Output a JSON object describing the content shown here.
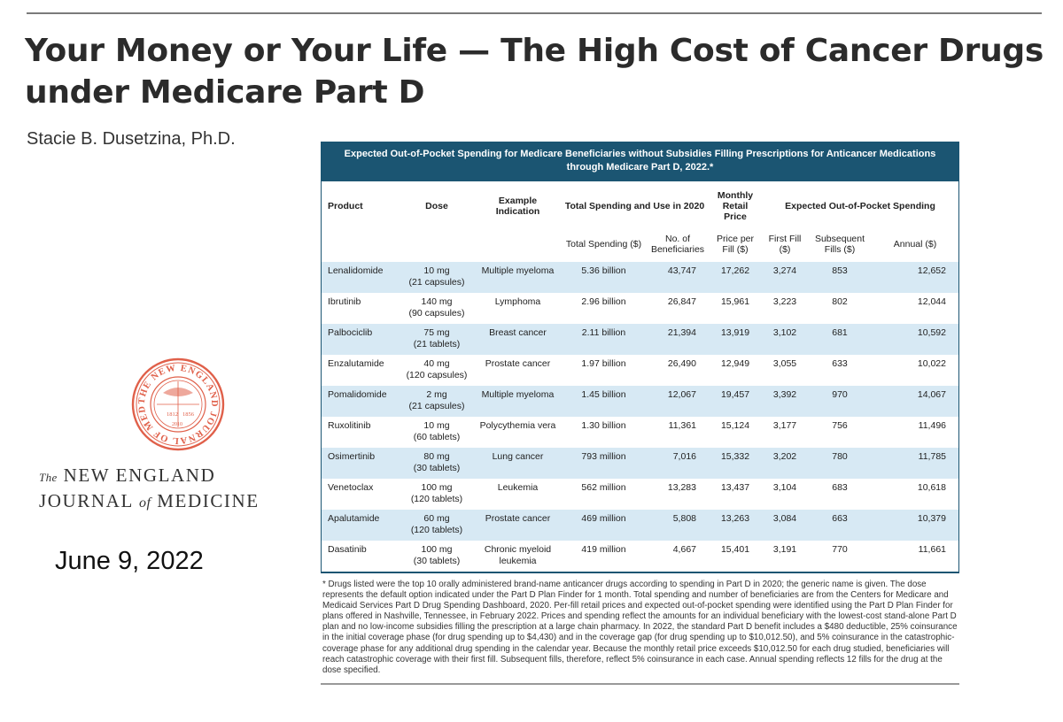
{
  "article": {
    "title": "Your Money or Your Life — The High Cost of Cancer Drugs under Medicare Part D",
    "author": "Stacie B. Dusetzina, Ph.D.",
    "date": "June 9, 2022"
  },
  "journal": {
    "the": "The",
    "line1": "NEW ENGLAND",
    "line2a": "JOURNAL",
    "of": "of",
    "line2b": "MEDICINE",
    "seal_text": "THE NEW ENGLAND JOURNAL OF MEDICINE",
    "seal_years": [
      "1812",
      "1856",
      "2010"
    ]
  },
  "table": {
    "title": "Expected Out-of-Pocket Spending for Medicare Beneficiaries without Subsidies Filling Prescriptions for Anticancer Medications through Medicare Part D, 2022.*",
    "headers": {
      "product": "Product",
      "dose": "Dose",
      "indication": "Example Indication",
      "total_group": "Total Spending and Use in 2020",
      "monthly_group": "Monthly Retail Price",
      "oop_group": "Expected Out-of-Pocket Spending",
      "total_spending": "Total Spending ($)",
      "beneficiaries": "No. of Beneficiaries",
      "price_per_fill": "Price per Fill ($)",
      "first_fill": "First Fill ($)",
      "subsequent": "Subsequent Fills ($)",
      "annual": "Annual ($)"
    },
    "rows": [
      {
        "product": "Lenalidomide",
        "dose": "10 mg",
        "dose_sub": "(21 capsules)",
        "indication": "Multiple myeloma",
        "total": "5.36 billion",
        "benef": "43,747",
        "price": "17,262",
        "first": "3,274",
        "subsequent": "853",
        "annual": "12,652"
      },
      {
        "product": "Ibrutinib",
        "dose": "140 mg",
        "dose_sub": "(90 capsules)",
        "indication": "Lymphoma",
        "total": "2.96 billion",
        "benef": "26,847",
        "price": "15,961",
        "first": "3,223",
        "subsequent": "802",
        "annual": "12,044"
      },
      {
        "product": "Palbociclib",
        "dose": "75 mg",
        "dose_sub": "(21 tablets)",
        "indication": "Breast cancer",
        "total": "2.11 billion",
        "benef": "21,394",
        "price": "13,919",
        "first": "3,102",
        "subsequent": "681",
        "annual": "10,592"
      },
      {
        "product": "Enzalutamide",
        "dose": "40 mg",
        "dose_sub": "(120 capsules)",
        "indication": "Prostate cancer",
        "total": "1.97 billion",
        "benef": "26,490",
        "price": "12,949",
        "first": "3,055",
        "subsequent": "633",
        "annual": "10,022"
      },
      {
        "product": "Pomalidomide",
        "dose": "2 mg",
        "dose_sub": "(21 capsules)",
        "indication": "Multiple myeloma",
        "total": "1.45 billion",
        "benef": "12,067",
        "price": "19,457",
        "first": "3,392",
        "subsequent": "970",
        "annual": "14,067"
      },
      {
        "product": "Ruxolitinib",
        "dose": "10 mg",
        "dose_sub": "(60 tablets)",
        "indication": "Polycythemia vera",
        "total": "1.30 billion",
        "benef": "11,361",
        "price": "15,124",
        "first": "3,177",
        "subsequent": "756",
        "annual": "11,496"
      },
      {
        "product": "Osimertinib",
        "dose": "80 mg",
        "dose_sub": "(30 tablets)",
        "indication": "Lung cancer",
        "total": "793 million",
        "benef": "7,016",
        "price": "15,332",
        "first": "3,202",
        "subsequent": "780",
        "annual": "11,785"
      },
      {
        "product": "Venetoclax",
        "dose": "100 mg",
        "dose_sub": "(120 tablets)",
        "indication": "Leukemia",
        "total": "562 million",
        "benef": "13,283",
        "price": "13,437",
        "first": "3,104",
        "subsequent": "683",
        "annual": "10,618"
      },
      {
        "product": "Apalutamide",
        "dose": "60 mg",
        "dose_sub": "(120 tablets)",
        "indication": "Prostate cancer",
        "total": "469 million",
        "benef": "5,808",
        "price": "13,263",
        "first": "3,084",
        "subsequent": "663",
        "annual": "10,379"
      },
      {
        "product": "Dasatinib",
        "dose": "100 mg",
        "dose_sub": "(30 tablets)",
        "indication": "Chronic myeloid leukemia",
        "total": "419 million",
        "benef": "4,667",
        "price": "15,401",
        "first": "3,191",
        "subsequent": "770",
        "annual": "11,661"
      }
    ],
    "footnote": "* Drugs listed were the top 10 orally administered brand-name anticancer drugs according to spending in Part D in 2020; the generic name is given. The dose represents the default option indicated under the Part D Plan Finder for 1 month. Total spending and number of beneficiaries are from the Centers for Medicare and Medicaid Services Part D Drug Spending Dashboard, 2020. Per-fill retail prices and expected out-of-pocket spending were identified using the Part D Plan Finder for plans offered in Nashville, Tennessee, in February 2022. Prices and spending reflect the amounts for an individual beneficiary with the lowest-cost stand-alone Part D plan and no low-income subsidies filling the prescription at a large chain pharmacy. In 2022, the standard Part D benefit includes a $480 deductible, 25% coinsurance in the initial coverage phase (for drug spending up to $4,430) and in the coverage gap (for drug spending up to $10,012.50), and 5% coinsurance in the catastrophic-coverage phase for any additional drug spending in the calendar year. Because the monthly retail price exceeds $10,012.50 for each drug studied, beneficiaries will reach catastrophic coverage with their first fill. Subsequent fills, therefore, reflect 5% coinsurance in each case. Annual spending reflects 12 fills for the drug at the dose specified."
  },
  "colors": {
    "header_bg": "#1b5572",
    "row_shade": "#d7e9f4",
    "seal": "#e0604a"
  }
}
